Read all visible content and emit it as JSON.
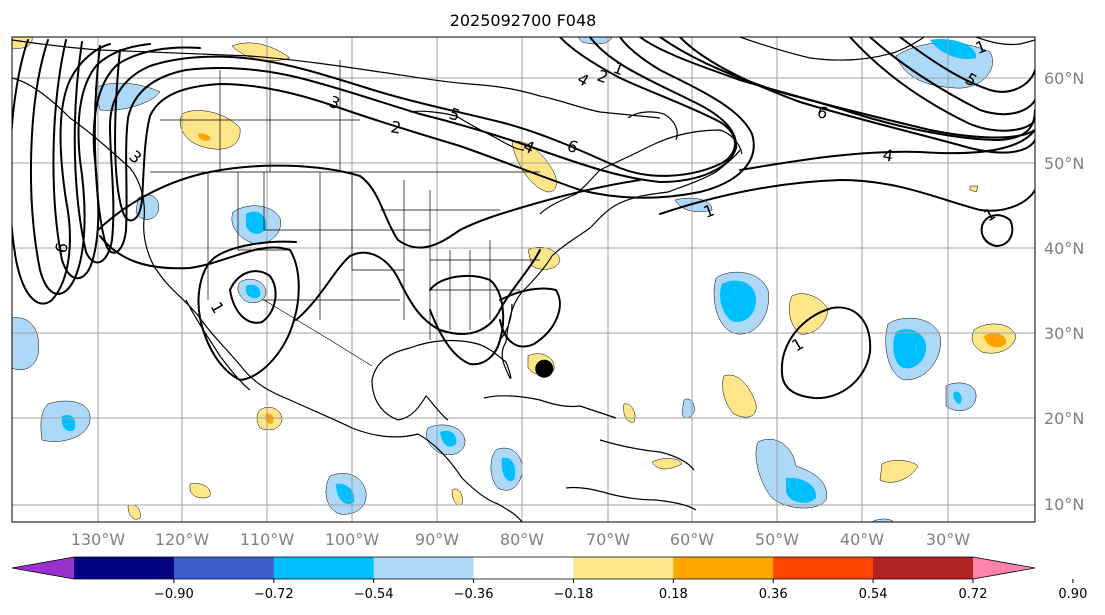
{
  "title": "2025092700 F048",
  "lon_labels": [
    "130°W",
    "120°W",
    "110°W",
    "100°W",
    "90°W",
    "80°W",
    "70°W",
    "60°W",
    "50°W",
    "40°W",
    "30°W"
  ],
  "lat_labels": [
    "60°N",
    "50°N",
    "40°N",
    "30°N",
    "20°N",
    "10°N"
  ],
  "colorbar": {
    "tick_labels": [
      "−0.90",
      "−0.72",
      "−0.54",
      "−0.36",
      "−0.18",
      "0.18",
      "0.36",
      "0.54",
      "0.72",
      "0.90"
    ],
    "colors": [
      "#9932cc",
      "#000080",
      "#3a5fcd",
      "#00bfff",
      "#add8f8",
      "#ffffff",
      "#ffe68a",
      "#ffa500",
      "#ff4500",
      "#b22222",
      "#ff82ab"
    ]
  },
  "contour_labels": {
    "six_west": "6",
    "six_ne": "6",
    "six_e": "6",
    "five_n": "5",
    "five_ne": "5",
    "four_n": "4",
    "four_ne": "4",
    "four_e": "4",
    "three_n": "3",
    "three_pac": "3",
    "two_n": "2",
    "two_ne": "2",
    "one_ne": "1",
    "one_ene": "1",
    "one_far_e": "1",
    "one_atl": "1",
    "one_sw": "1",
    "one_far_ne": "1"
  },
  "storm_marker": {
    "lon": -77.5,
    "lat": 25.8
  }
}
